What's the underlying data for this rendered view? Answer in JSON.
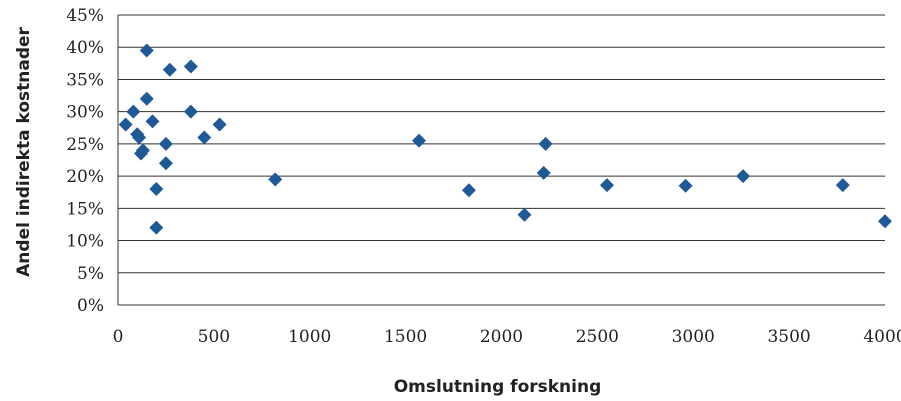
{
  "chart_data": {
    "type": "scatter",
    "xlabel": "Omslutning forskning",
    "ylabel": "Andel indirekta kostnader",
    "xlim": [
      0,
      4000
    ],
    "ylim": [
      0,
      0.45
    ],
    "x_ticks": [
      "0",
      "500",
      "1000",
      "1500",
      "2000",
      "2500",
      "3000",
      "3500",
      "4000"
    ],
    "y_ticks": [
      "0%",
      "5%",
      "10%",
      "15%",
      "20%",
      "25%",
      "30%",
      "35%",
      "40%",
      "45%"
    ],
    "grid": "horizontal",
    "marker_color": "#1f5a96",
    "points": [
      {
        "x": 40,
        "y": 0.28
      },
      {
        "x": 80,
        "y": 0.3
      },
      {
        "x": 100,
        "y": 0.265
      },
      {
        "x": 110,
        "y": 0.26
      },
      {
        "x": 120,
        "y": 0.235
      },
      {
        "x": 130,
        "y": 0.24
      },
      {
        "x": 150,
        "y": 0.395
      },
      {
        "x": 150,
        "y": 0.32
      },
      {
        "x": 180,
        "y": 0.285
      },
      {
        "x": 200,
        "y": 0.18
      },
      {
        "x": 200,
        "y": 0.12
      },
      {
        "x": 250,
        "y": 0.22
      },
      {
        "x": 250,
        "y": 0.25
      },
      {
        "x": 270,
        "y": 0.365
      },
      {
        "x": 380,
        "y": 0.37
      },
      {
        "x": 380,
        "y": 0.3
      },
      {
        "x": 450,
        "y": 0.26
      },
      {
        "x": 530,
        "y": 0.28
      },
      {
        "x": 820,
        "y": 0.195
      },
      {
        "x": 1570,
        "y": 0.255
      },
      {
        "x": 1830,
        "y": 0.178
      },
      {
        "x": 2120,
        "y": 0.14
      },
      {
        "x": 2220,
        "y": 0.205
      },
      {
        "x": 2230,
        "y": 0.25
      },
      {
        "x": 2550,
        "y": 0.186
      },
      {
        "x": 2960,
        "y": 0.185
      },
      {
        "x": 3260,
        "y": 0.2
      },
      {
        "x": 3780,
        "y": 0.186
      },
      {
        "x": 4000,
        "y": 0.13
      }
    ]
  }
}
